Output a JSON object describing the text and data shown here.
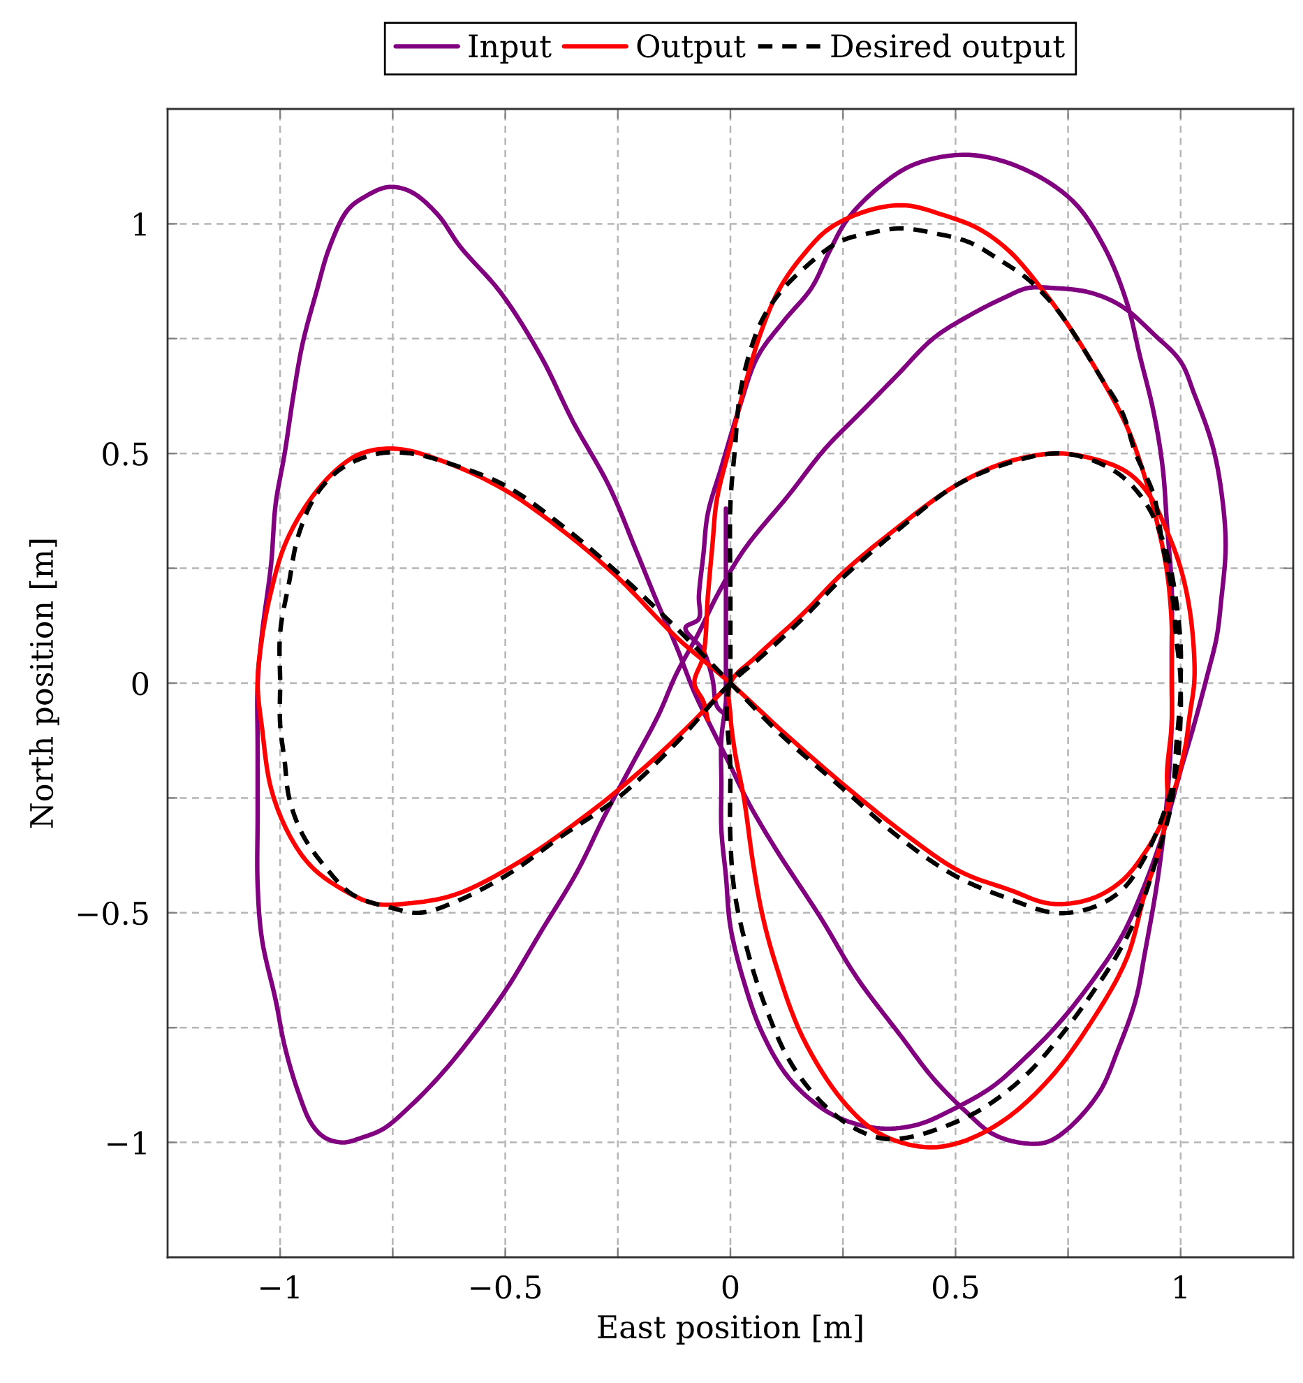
{
  "chart_data": {
    "type": "line",
    "xlabel": "East position [m]",
    "ylabel": "North position [m]",
    "xlim": [
      -1.25,
      1.25
    ],
    "ylim": [
      -1.25,
      1.25
    ],
    "xticks": [
      {
        "value": -1,
        "label": "−1"
      },
      {
        "value": -0.75,
        "label": null
      },
      {
        "value": -0.5,
        "label": "−0.5"
      },
      {
        "value": -0.25,
        "label": null
      },
      0,
      {
        "value": 0.25,
        "label": null
      },
      0.5,
      {
        "value": 0.75,
        "label": null
      },
      1
    ],
    "yticks": [
      {
        "value": -1,
        "label": "−1"
      },
      {
        "value": -0.75,
        "label": null
      },
      {
        "value": -0.5,
        "label": "−0.5"
      },
      {
        "value": -0.25,
        "label": null
      },
      0,
      {
        "value": 0.25,
        "label": null
      },
      0.5,
      {
        "value": 0.75,
        "label": null
      },
      1
    ],
    "grid": true,
    "legend": "top",
    "series": [
      {
        "name": "Input",
        "color": "#800080",
        "x": [
          -0.01,
          -0.01,
          -0.01,
          -0.02,
          -0.02,
          -0.02,
          -0.01,
          0.0,
          0.03,
          0.07,
          0.13,
          0.21,
          0.28,
          0.35,
          0.42,
          0.49,
          0.58,
          0.65,
          0.73,
          0.81,
          0.87,
          0.92,
          0.96,
          1.0,
          1.03,
          1.06,
          1.08,
          1.09,
          1.1,
          1.09,
          1.07,
          1.03,
          1.0,
          0.94,
          0.87,
          0.8,
          0.72,
          0.66,
          0.61,
          0.53,
          0.45,
          0.37,
          0.29,
          0.21,
          0.13,
          0.03,
          -0.03,
          -0.07,
          -0.12,
          -0.16,
          -0.22,
          -0.28,
          -0.34,
          -0.42,
          -0.5,
          -0.59,
          -0.65,
          -0.71,
          -0.77,
          -0.82,
          -0.86,
          -0.9,
          -0.93,
          -0.96,
          -0.99,
          -1.01,
          -1.04,
          -1.05,
          -1.05,
          -1.05,
          -1.05,
          -1.04,
          -1.02,
          -1.01,
          -0.99,
          -0.97,
          -0.95,
          -0.92,
          -0.89,
          -0.85,
          -0.81,
          -0.76,
          -0.71,
          -0.65,
          -0.6,
          -0.51,
          -0.42,
          -0.35,
          -0.27,
          -0.21,
          -0.16,
          -0.12,
          -0.08,
          -0.01,
          0.04,
          0.1,
          0.2,
          0.28,
          0.38,
          0.45,
          0.52,
          0.58,
          0.64,
          0.7,
          0.75,
          0.82,
          0.86,
          0.9,
          0.92,
          0.95,
          0.97,
          0.98,
          0.98,
          0.98,
          0.97,
          0.96,
          0.94,
          0.91,
          0.88,
          0.83,
          0.76,
          0.65,
          0.53,
          0.41,
          0.33,
          0.26,
          0.22,
          0.18,
          0.12,
          0.06,
          0.02,
          -0.02,
          -0.05,
          -0.06,
          -0.07,
          -0.07,
          -0.1,
          -0.06,
          -0.04,
          -0.03,
          -0.01
        ],
        "values": [
          0.38,
          0.0,
          -0.04,
          -0.12,
          -0.22,
          -0.32,
          -0.42,
          -0.53,
          -0.65,
          -0.76,
          -0.86,
          -0.93,
          -0.96,
          -0.97,
          -0.96,
          -0.93,
          -0.88,
          -0.82,
          -0.74,
          -0.64,
          -0.55,
          -0.44,
          -0.33,
          -0.19,
          -0.09,
          0.02,
          0.1,
          0.18,
          0.3,
          0.42,
          0.52,
          0.63,
          0.7,
          0.76,
          0.82,
          0.85,
          0.86,
          0.86,
          0.84,
          0.8,
          0.75,
          0.67,
          0.59,
          0.51,
          0.41,
          0.29,
          0.19,
          0.11,
          0.02,
          -0.07,
          -0.18,
          -0.29,
          -0.41,
          -0.54,
          -0.67,
          -0.79,
          -0.86,
          -0.92,
          -0.97,
          -0.99,
          -1.0,
          -0.99,
          -0.96,
          -0.89,
          -0.79,
          -0.69,
          -0.56,
          -0.44,
          -0.29,
          -0.14,
          0.0,
          0.11,
          0.26,
          0.39,
          0.5,
          0.63,
          0.74,
          0.85,
          0.95,
          1.03,
          1.06,
          1.08,
          1.07,
          1.02,
          0.95,
          0.85,
          0.71,
          0.57,
          0.43,
          0.29,
          0.17,
          0.08,
          -0.02,
          -0.16,
          -0.26,
          -0.36,
          -0.51,
          -0.64,
          -0.77,
          -0.86,
          -0.93,
          -0.98,
          -1.0,
          -1.0,
          -0.97,
          -0.89,
          -0.8,
          -0.69,
          -0.59,
          -0.42,
          -0.25,
          -0.09,
          0.06,
          0.21,
          0.34,
          0.47,
          0.59,
          0.71,
          0.83,
          0.95,
          1.05,
          1.12,
          1.15,
          1.13,
          1.08,
          1.01,
          0.94,
          0.86,
          0.79,
          0.71,
          0.6,
          0.47,
          0.37,
          0.28,
          0.19,
          0.14,
          0.12,
          0.07,
          0.01,
          -0.05,
          -0.07
        ]
      },
      {
        "name": "Output",
        "color": "#ff0000",
        "x": [
          -0.05,
          -0.06,
          -0.08,
          -0.06,
          -0.05,
          -0.04,
          -0.03,
          0.0,
          0.03,
          0.07,
          0.11,
          0.16,
          0.22,
          0.31,
          0.39,
          0.47,
          0.55,
          0.62,
          0.69,
          0.75,
          0.82,
          0.88,
          0.92,
          0.95,
          0.97,
          0.98,
          0.98,
          0.98,
          0.97,
          0.97,
          0.95,
          0.92,
          0.88,
          0.8,
          0.71,
          0.61,
          0.51,
          0.43,
          0.33,
          0.25,
          0.16,
          0.1,
          0.07,
          0.05,
          0.03,
          0.01,
          0.0,
          0.0,
          0.06,
          0.16,
          0.25,
          0.36,
          0.5,
          0.61,
          0.72,
          0.8,
          0.88,
          0.93,
          0.97,
          1.0,
          1.02,
          1.03,
          1.03,
          1.02,
          1.01,
          0.99,
          0.96,
          0.92,
          0.87,
          0.8,
          0.71,
          0.62,
          0.51,
          0.39,
          0.25,
          0.11,
          0.0,
          -0.12,
          -0.25,
          -0.37,
          -0.5,
          -0.63,
          -0.74,
          -0.82,
          -0.88,
          -0.94,
          -0.99,
          -1.02,
          -1.04,
          -1.05,
          -1.04,
          -1.02,
          -0.98,
          -0.93,
          -0.86,
          -0.79,
          -0.72,
          -0.61,
          -0.47,
          -0.31,
          -0.21,
          -0.11,
          0.0
        ],
        "values": [
          -0.08,
          -0.04,
          0.0,
          0.06,
          0.19,
          0.3,
          0.4,
          0.52,
          0.64,
          0.77,
          0.86,
          0.93,
          0.99,
          1.03,
          1.04,
          1.02,
          0.99,
          0.94,
          0.86,
          0.78,
          0.67,
          0.56,
          0.45,
          0.34,
          0.24,
          0.13,
          0.0,
          -0.09,
          -0.19,
          -0.28,
          -0.37,
          -0.46,
          -0.6,
          -0.74,
          -0.86,
          -0.95,
          -1.0,
          -1.01,
          -0.98,
          -0.91,
          -0.77,
          -0.61,
          -0.5,
          -0.39,
          -0.25,
          -0.15,
          -0.07,
          0.0,
          0.06,
          0.15,
          0.24,
          0.33,
          0.43,
          0.48,
          0.5,
          0.49,
          0.46,
          0.41,
          0.33,
          0.25,
          0.16,
          0.06,
          0.0,
          -0.07,
          -0.14,
          -0.22,
          -0.3,
          -0.37,
          -0.43,
          -0.47,
          -0.48,
          -0.45,
          -0.41,
          -0.33,
          -0.22,
          -0.1,
          0.0,
          0.1,
          0.23,
          0.33,
          0.42,
          0.48,
          0.51,
          0.5,
          0.46,
          0.39,
          0.3,
          0.2,
          0.1,
          0.0,
          -0.1,
          -0.23,
          -0.33,
          -0.4,
          -0.45,
          -0.48,
          -0.48,
          -0.46,
          -0.39,
          -0.28,
          -0.2,
          -0.11,
          0.0
        ]
      },
      {
        "name": "Desired output",
        "color": "#000000",
        "line_style": "dashed",
        "x": [
          0.0,
          0.0,
          0.0,
          0.01,
          0.02,
          0.04,
          0.07,
          0.11,
          0.16,
          0.24,
          0.31,
          0.38,
          0.45,
          0.53,
          0.6,
          0.66,
          0.72,
          0.77,
          0.82,
          0.87,
          0.9,
          0.94,
          0.96,
          0.98,
          0.99,
          1.0,
          0.99,
          0.98,
          0.95,
          0.91,
          0.86,
          0.8,
          0.74,
          0.66,
          0.57,
          0.49,
          0.39,
          0.33,
          0.26,
          0.19,
          0.13,
          0.08,
          0.04,
          0.01,
          0.0,
          0.0,
          0.0,
          0.06,
          0.16,
          0.25,
          0.38,
          0.5,
          0.62,
          0.72,
          0.79,
          0.87,
          0.93,
          0.97,
          0.99,
          1.0,
          1.0,
          1.0,
          0.99,
          0.96,
          0.92,
          0.87,
          0.8,
          0.72,
          0.62,
          0.5,
          0.38,
          0.25,
          0.11,
          0.0,
          -0.12,
          -0.25,
          -0.37,
          -0.5,
          -0.63,
          -0.71,
          -0.78,
          -0.86,
          -0.92,
          -0.96,
          -0.98,
          -1.0,
          -1.0,
          -1.0,
          -0.99,
          -0.98,
          -0.95,
          -0.9,
          -0.84,
          -0.75,
          -0.69,
          -0.62,
          -0.5,
          -0.37,
          -0.25,
          -0.12,
          0.0,
          0.06
        ],
        "values": [
          0.0,
          0.19,
          0.39,
          0.51,
          0.62,
          0.71,
          0.79,
          0.85,
          0.9,
          0.96,
          0.98,
          0.99,
          0.98,
          0.96,
          0.92,
          0.88,
          0.82,
          0.75,
          0.67,
          0.59,
          0.5,
          0.41,
          0.3,
          0.2,
          0.1,
          0.0,
          -0.14,
          -0.26,
          -0.37,
          -0.49,
          -0.59,
          -0.68,
          -0.76,
          -0.85,
          -0.92,
          -0.96,
          -0.99,
          -0.99,
          -0.96,
          -0.9,
          -0.82,
          -0.71,
          -0.59,
          -0.46,
          -0.34,
          -0.19,
          0.0,
          0.05,
          0.14,
          0.23,
          0.34,
          0.43,
          0.48,
          0.5,
          0.49,
          0.45,
          0.38,
          0.28,
          0.18,
          0.08,
          0.0,
          -0.07,
          -0.19,
          -0.29,
          -0.38,
          -0.45,
          -0.49,
          -0.5,
          -0.47,
          -0.42,
          -0.34,
          -0.23,
          -0.11,
          0.0,
          0.12,
          0.24,
          0.34,
          0.43,
          0.48,
          0.5,
          0.5,
          0.47,
          0.41,
          0.32,
          0.22,
          0.11,
          0.0,
          -0.09,
          -0.17,
          -0.25,
          -0.33,
          -0.4,
          -0.46,
          -0.49,
          -0.5,
          -0.48,
          -0.42,
          -0.33,
          -0.25,
          -0.13,
          0.0,
          0.05
        ]
      }
    ]
  }
}
